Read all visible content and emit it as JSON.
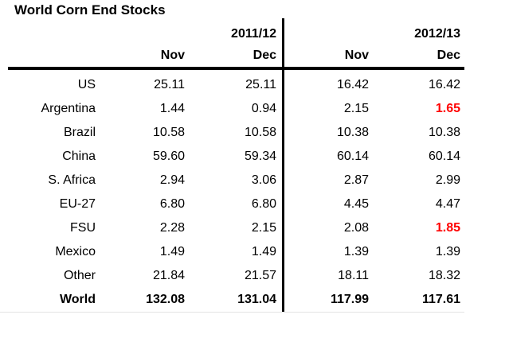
{
  "title": "World Corn End Stocks",
  "colors": {
    "text": "#000000",
    "highlight": "#ff0000",
    "rule": "#000000",
    "background": "#ffffff"
  },
  "table": {
    "group_headers": [
      "2011/12",
      "2012/13"
    ],
    "sub_headers": [
      "Nov",
      "Dec",
      "Nov",
      "Dec"
    ],
    "rows": [
      {
        "name": "US",
        "v": [
          "25.11",
          "25.11",
          "16.42",
          "16.42"
        ]
      },
      {
        "name": "Argentina",
        "v": [
          "1.44",
          "0.94",
          "2.15",
          "1.65"
        ]
      },
      {
        "name": "Brazil",
        "v": [
          "10.58",
          "10.58",
          "10.38",
          "10.38"
        ]
      },
      {
        "name": "China",
        "v": [
          "59.60",
          "59.34",
          "60.14",
          "60.14"
        ]
      },
      {
        "name": "S. Africa",
        "v": [
          "2.94",
          "3.06",
          "2.87",
          "2.99"
        ]
      },
      {
        "name": "EU-27",
        "v": [
          "6.80",
          "6.80",
          "4.45",
          "4.47"
        ]
      },
      {
        "name": "FSU",
        "v": [
          "2.28",
          "2.15",
          "2.08",
          "1.85"
        ]
      },
      {
        "name": "Mexico",
        "v": [
          "1.49",
          "1.49",
          "1.39",
          "1.39"
        ]
      },
      {
        "name": "Other",
        "v": [
          "21.84",
          "21.57",
          "18.11",
          "18.32"
        ]
      },
      {
        "name": "World",
        "v": [
          "132.08",
          "131.04",
          "117.99",
          "117.61"
        ]
      }
    ]
  },
  "chart_data": {
    "type": "table",
    "title": "World Corn End Stocks",
    "column_groups": [
      "2011/12",
      "2012/13"
    ],
    "columns": [
      "2011/12 Nov",
      "2011/12 Dec",
      "2012/13 Nov",
      "2012/13 Dec"
    ],
    "row_labels": [
      "US",
      "Argentina",
      "Brazil",
      "China",
      "S. Africa",
      "EU-27",
      "FSU",
      "Mexico",
      "Other",
      "World"
    ],
    "rows": [
      [
        25.11,
        25.11,
        16.42,
        16.42
      ],
      [
        1.44,
        0.94,
        2.15,
        1.65
      ],
      [
        10.58,
        10.58,
        10.38,
        10.38
      ],
      [
        59.6,
        59.34,
        60.14,
        60.14
      ],
      [
        2.94,
        3.06,
        2.87,
        2.99
      ],
      [
        6.8,
        6.8,
        4.45,
        4.47
      ],
      [
        2.28,
        2.15,
        2.08,
        1.85
      ],
      [
        1.49,
        1.49,
        1.39,
        1.39
      ],
      [
        21.84,
        21.57,
        18.11,
        18.32
      ],
      [
        132.08,
        131.04,
        117.99,
        117.61
      ]
    ],
    "highlighted_cells": [
      {
        "row": "Argentina",
        "column": "2012/13 Dec",
        "value": 1.65,
        "color": "#ff0000"
      },
      {
        "row": "FSU",
        "column": "2012/13 Dec",
        "value": 1.85,
        "color": "#ff0000"
      }
    ],
    "bold_rows": [
      "World"
    ]
  }
}
